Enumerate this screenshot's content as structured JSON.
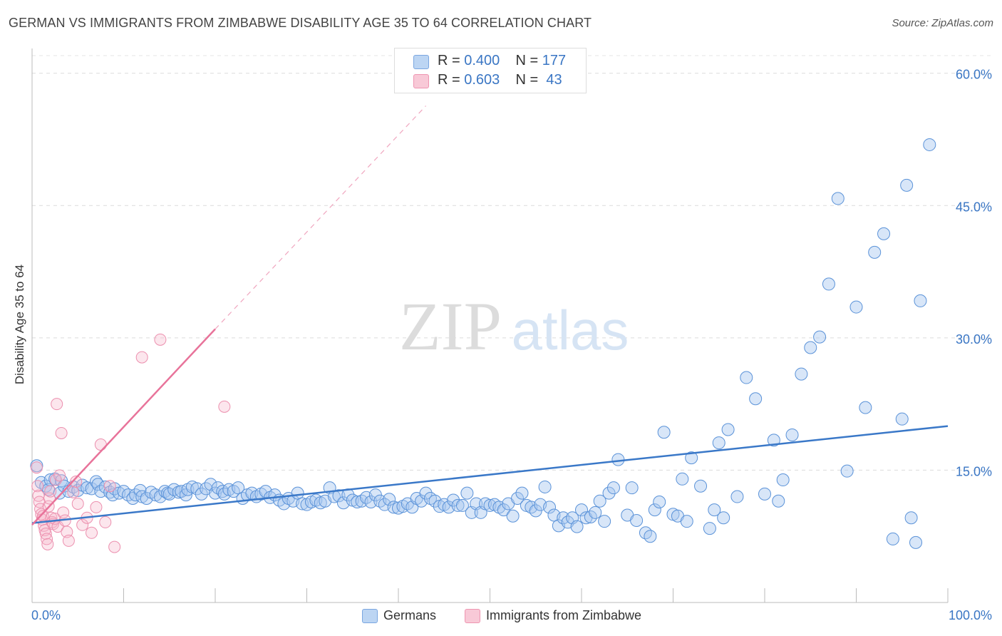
{
  "header": {
    "title": "GERMAN VS IMMIGRANTS FROM ZIMBABWE DISABILITY AGE 35 TO 64 CORRELATION CHART",
    "source": "Source: ZipAtlas.com"
  },
  "watermark": {
    "zip": "ZIP",
    "atlas": "atlas"
  },
  "legend": {
    "r_label": "R =",
    "n_label": "N =",
    "series": [
      {
        "r": "0.400",
        "n": "177",
        "color": "#a8c8f0"
      },
      {
        "r": "0.603",
        "n": "43",
        "color": "#f5b8cb"
      }
    ]
  },
  "bottom_legend": [
    {
      "label": "Germans",
      "color": "#a8c8f0"
    },
    {
      "label": "Immigrants from Zimbabwe",
      "color": "#f5b8cb"
    }
  ],
  "chart_data": {
    "type": "scatter",
    "title": "GERMAN VS IMMIGRANTS FROM ZIMBABWE DISABILITY AGE 35 TO 64 CORRELATION CHART",
    "xlabel": "",
    "ylabel": "Disability Age 35 to 64",
    "xlim": [
      0,
      100
    ],
    "ylim": [
      0,
      62
    ],
    "x_tick_labels": [
      {
        "value": 0,
        "label": "0.0%"
      },
      {
        "value": 100,
        "label": "100.0%"
      }
    ],
    "y_tick_labels": [
      {
        "value": 15,
        "label": "15.0%"
      },
      {
        "value": 30,
        "label": "30.0%"
      },
      {
        "value": 45,
        "label": "45.0%"
      },
      {
        "value": 60,
        "label": "60.0%"
      }
    ],
    "grid": true,
    "legend_position": "top-center",
    "colors": {
      "germans": "#4a86d4",
      "zimbabwe": "#e8739a"
    },
    "series": [
      {
        "name": "Germans",
        "trend": {
          "x": [
            0,
            100
          ],
          "y": [
            9.0,
            20.0
          ]
        },
        "points": [
          [
            0.5,
            15.5
          ],
          [
            1,
            13.6
          ],
          [
            1.5,
            13.2
          ],
          [
            1.8,
            12.8
          ],
          [
            2,
            13.9
          ],
          [
            2.5,
            14
          ],
          [
            3,
            12.4
          ],
          [
            3.2,
            13.8
          ],
          [
            3.5,
            13.2
          ],
          [
            4,
            12.6
          ],
          [
            4.5,
            13.1
          ],
          [
            5,
            12.7
          ],
          [
            5.5,
            13.3
          ],
          [
            6,
            13
          ],
          [
            6.5,
            12.9
          ],
          [
            7,
            13.7
          ],
          [
            7.2,
            13.4
          ],
          [
            7.5,
            12.6
          ],
          [
            8,
            13.1
          ],
          [
            8.5,
            12.5
          ],
          [
            8.8,
            12.2
          ],
          [
            9,
            12.9
          ],
          [
            9.5,
            12.4
          ],
          [
            10,
            12.6
          ],
          [
            10.5,
            12.2
          ],
          [
            11,
            11.8
          ],
          [
            11.3,
            12.2
          ],
          [
            11.8,
            12.7
          ],
          [
            12,
            12
          ],
          [
            12.5,
            11.8
          ],
          [
            13,
            12.5
          ],
          [
            13.5,
            12.2
          ],
          [
            14,
            12
          ],
          [
            14.5,
            12.6
          ],
          [
            14.8,
            12.4
          ],
          [
            15,
            12.3
          ],
          [
            15.5,
            12.8
          ],
          [
            16,
            12.5
          ],
          [
            16.3,
            12.6
          ],
          [
            16.8,
            12.2
          ],
          [
            17,
            12.8
          ],
          [
            17.5,
            13.1
          ],
          [
            18,
            12.9
          ],
          [
            18.5,
            12.3
          ],
          [
            19,
            12.9
          ],
          [
            19.5,
            13.4
          ],
          [
            20,
            12.4
          ],
          [
            20.3,
            13
          ],
          [
            20.8,
            12.6
          ],
          [
            21,
            12.3
          ],
          [
            21.5,
            12.8
          ],
          [
            22,
            12.6
          ],
          [
            22.5,
            13
          ],
          [
            23,
            11.8
          ],
          [
            23.5,
            12.2
          ],
          [
            24,
            12.4
          ],
          [
            24.5,
            12
          ],
          [
            25,
            12.3
          ],
          [
            25.5,
            12.6
          ],
          [
            26,
            11.9
          ],
          [
            26.5,
            12.2
          ],
          [
            27,
            11.6
          ],
          [
            27.5,
            11.2
          ],
          [
            28,
            11.8
          ],
          [
            28.5,
            11.5
          ],
          [
            29,
            12.4
          ],
          [
            29.5,
            11.2
          ],
          [
            30,
            11.1
          ],
          [
            30.5,
            11.4
          ],
          [
            31,
            11.6
          ],
          [
            31.5,
            11.3
          ],
          [
            32,
            11.5
          ],
          [
            32.5,
            13
          ],
          [
            33,
            12
          ],
          [
            33.5,
            12.1
          ],
          [
            34,
            11.3
          ],
          [
            34.5,
            12.2
          ],
          [
            35,
            11.6
          ],
          [
            35.5,
            11.4
          ],
          [
            36,
            11.5
          ],
          [
            36.5,
            11.9
          ],
          [
            37,
            11.4
          ],
          [
            37.5,
            12.2
          ],
          [
            38,
            11.5
          ],
          [
            38.5,
            11.1
          ],
          [
            39,
            11.7
          ],
          [
            39.5,
            10.8
          ],
          [
            40,
            10.7
          ],
          [
            40.5,
            10.9
          ],
          [
            41,
            11.2
          ],
          [
            41.5,
            10.8
          ],
          [
            42,
            11.8
          ],
          [
            42.5,
            11.5
          ],
          [
            43,
            12.4
          ],
          [
            43.5,
            11.8
          ],
          [
            44,
            11.5
          ],
          [
            44.5,
            10.9
          ],
          [
            45,
            11.1
          ],
          [
            45.5,
            10.8
          ],
          [
            46,
            11.6
          ],
          [
            46.5,
            11
          ],
          [
            47,
            11
          ],
          [
            47.5,
            12.4
          ],
          [
            48,
            10.2
          ],
          [
            48.5,
            11.2
          ],
          [
            49,
            10.2
          ],
          [
            49.5,
            11.2
          ],
          [
            50,
            11
          ],
          [
            50.5,
            11.1
          ],
          [
            51,
            10.8
          ],
          [
            51.5,
            10.5
          ],
          [
            52,
            11.2
          ],
          [
            52.5,
            9.8
          ],
          [
            53,
            11.8
          ],
          [
            53.5,
            12.4
          ],
          [
            54,
            11
          ],
          [
            54.5,
            10.8
          ],
          [
            55,
            10.4
          ],
          [
            55.5,
            11.1
          ],
          [
            56,
            13.1
          ],
          [
            56.5,
            10.8
          ],
          [
            57,
            9.9
          ],
          [
            57.5,
            8.7
          ],
          [
            58,
            9.6
          ],
          [
            58.5,
            9.1
          ],
          [
            59,
            9.6
          ],
          [
            59.5,
            8.6
          ],
          [
            60,
            10.5
          ],
          [
            60.5,
            9.6
          ],
          [
            61,
            9.7
          ],
          [
            61.5,
            10.2
          ],
          [
            62,
            11.5
          ],
          [
            62.5,
            9.2
          ],
          [
            63,
            12.4
          ],
          [
            63.5,
            13
          ],
          [
            64,
            16.2
          ],
          [
            65,
            9.9
          ],
          [
            65.5,
            13
          ],
          [
            66,
            9.3
          ],
          [
            67,
            7.9
          ],
          [
            67.5,
            7.5
          ],
          [
            68,
            10.5
          ],
          [
            68.5,
            11.4
          ],
          [
            69,
            19.3
          ],
          [
            70,
            10
          ],
          [
            70.5,
            9.8
          ],
          [
            71,
            14
          ],
          [
            71.5,
            9.2
          ],
          [
            72,
            16.4
          ],
          [
            73,
            13.2
          ],
          [
            74,
            8.4
          ],
          [
            74.5,
            10.5
          ],
          [
            75,
            18.1
          ],
          [
            75.5,
            9.6
          ],
          [
            76,
            19.6
          ],
          [
            77,
            12
          ],
          [
            78,
            25.5
          ],
          [
            79,
            23.1
          ],
          [
            80,
            12.3
          ],
          [
            81,
            18.4
          ],
          [
            81.5,
            11.5
          ],
          [
            82,
            13.9
          ],
          [
            83,
            19
          ],
          [
            84,
            25.9
          ],
          [
            85,
            28.9
          ],
          [
            86,
            30.1
          ],
          [
            87,
            36.1
          ],
          [
            88,
            45.8
          ],
          [
            89,
            14.9
          ],
          [
            90,
            33.5
          ],
          [
            91,
            22.1
          ],
          [
            92,
            39.7
          ],
          [
            93,
            41.8
          ],
          [
            94,
            7.2
          ],
          [
            95,
            20.8
          ],
          [
            95.5,
            47.3
          ],
          [
            96,
            9.6
          ],
          [
            96.5,
            6.8
          ],
          [
            97,
            34.2
          ],
          [
            98,
            51.9
          ]
        ]
      },
      {
        "name": "Immigrants from Zimbabwe",
        "trend": {
          "x": [
            0,
            20
          ],
          "y": [
            8.8,
            31.0
          ]
        },
        "trend_extension": {
          "x": [
            20,
            43
          ],
          "y": [
            31.0,
            56.3
          ]
        },
        "points": [
          [
            0.5,
            15.3
          ],
          [
            0.6,
            13.2
          ],
          [
            0.7,
            12.1
          ],
          [
            0.8,
            11.4
          ],
          [
            0.9,
            10.6
          ],
          [
            1,
            10
          ],
          [
            1.1,
            9.4
          ],
          [
            1.2,
            9.8
          ],
          [
            1.3,
            8.7
          ],
          [
            1.4,
            8.2
          ],
          [
            1.5,
            7.8
          ],
          [
            1.6,
            7.2
          ],
          [
            1.7,
            6.6
          ],
          [
            1.8,
            10.9
          ],
          [
            1.9,
            11.8
          ],
          [
            2,
            12.6
          ],
          [
            2.1,
            9.6
          ],
          [
            2.2,
            9.1
          ],
          [
            2.3,
            8.9
          ],
          [
            2.5,
            9.5
          ],
          [
            2.6,
            13.9
          ],
          [
            2.7,
            22.5
          ],
          [
            2.8,
            8.6
          ],
          [
            3,
            14.4
          ],
          [
            3.2,
            19.2
          ],
          [
            3.4,
            10.2
          ],
          [
            3.6,
            9.3
          ],
          [
            3.8,
            8
          ],
          [
            4,
            7
          ],
          [
            4.5,
            12.5
          ],
          [
            4.8,
            13.7
          ],
          [
            5,
            11.2
          ],
          [
            5.5,
            8.8
          ],
          [
            6,
            9.6
          ],
          [
            6.5,
            7.9
          ],
          [
            7,
            10.8
          ],
          [
            7.5,
            17.9
          ],
          [
            8,
            9.1
          ],
          [
            8.5,
            13.2
          ],
          [
            9,
            6.3
          ],
          [
            12,
            27.8
          ],
          [
            14,
            29.8
          ],
          [
            21,
            22.2
          ]
        ]
      }
    ]
  }
}
